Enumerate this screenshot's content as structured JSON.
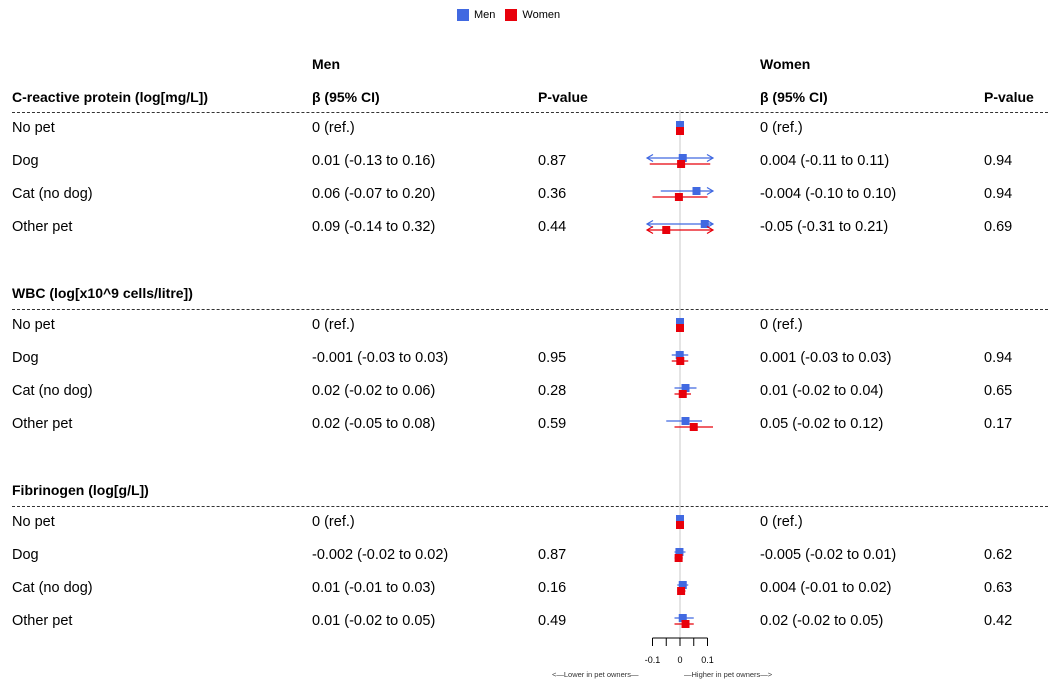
{
  "legend": {
    "men_label": "Men",
    "women_label": "Women",
    "men_color": "#4169E1",
    "women_color": "#E8000B"
  },
  "group_headers": {
    "men": "Men",
    "women": "Women"
  },
  "column_headers": {
    "estimate": "β (95% CI)",
    "pvalue": "P-value"
  },
  "axis": {
    "ticks": [
      -0.1,
      0,
      0.1
    ],
    "tick_labels": [
      "-0.1",
      "0",
      "0.1"
    ],
    "lower_note": "<—Lower in pet owners—",
    "higher_note": "—Higher in pet owners—>"
  },
  "sections": [
    {
      "title": "C-reactive protein (log[mg/L])",
      "rows": [
        {
          "label": "No pet",
          "men_ci": "0 (ref.)",
          "men_p": "",
          "women_ci": "0 (ref.)",
          "women_p": ""
        },
        {
          "label": "Dog",
          "men_ci": "0.01 (-0.13 to 0.16)",
          "men_p": "0.87",
          "women_ci": "0.004 (-0.11 to 0.11)",
          "women_p": "0.94"
        },
        {
          "label": "Cat (no dog)",
          "men_ci": "0.06 (-0.07 to 0.20)",
          "men_p": "0.36",
          "women_ci": "-0.004 (-0.10 to 0.10)",
          "women_p": "0.94"
        },
        {
          "label": "Other pet",
          "men_ci": "0.09 (-0.14 to 0.32)",
          "men_p": "0.44",
          "women_ci": "-0.05 (-0.31 to 0.21)",
          "women_p": "0.69"
        }
      ]
    },
    {
      "title": "WBC (log[x10^9 cells/litre])",
      "rows": [
        {
          "label": "No pet",
          "men_ci": "0 (ref.)",
          "men_p": "",
          "women_ci": "0 (ref.)",
          "women_p": ""
        },
        {
          "label": "Dog",
          "men_ci": "-0.001 (-0.03 to 0.03)",
          "men_p": "0.95",
          "women_ci": "0.001 (-0.03 to 0.03)",
          "women_p": "0.94"
        },
        {
          "label": "Cat (no dog)",
          "men_ci": "0.02 (-0.02 to 0.06)",
          "men_p": "0.28",
          "women_ci": "0.01 (-0.02 to 0.04)",
          "women_p": "0.65"
        },
        {
          "label": "Other pet",
          "men_ci": "0.02 (-0.05 to 0.08)",
          "men_p": "0.59",
          "women_ci": "0.05 (-0.02 to 0.12)",
          "women_p": "0.17"
        }
      ]
    },
    {
      "title": "Fibrinogen (log[g/L])",
      "rows": [
        {
          "label": "No pet",
          "men_ci": "0 (ref.)",
          "men_p": "",
          "women_ci": "0 (ref.)",
          "women_p": ""
        },
        {
          "label": "Dog",
          "men_ci": "-0.002 (-0.02 to 0.02)",
          "men_p": "0.87",
          "women_ci": "-0.005 (-0.02 to 0.01)",
          "women_p": "0.62"
        },
        {
          "label": "Cat (no dog)",
          "men_ci": "0.01 (-0.01 to 0.03)",
          "men_p": "0.16",
          "women_ci": "0.004 (-0.01 to 0.02)",
          "women_p": "0.63"
        },
        {
          "label": "Other pet",
          "men_ci": "0.01 (-0.02 to 0.05)",
          "men_p": "0.49",
          "women_ci": "0.02 (-0.02 to 0.05)",
          "women_p": "0.42"
        }
      ]
    }
  ],
  "chart_data": {
    "type": "forest",
    "title": "",
    "xlim": [
      -0.12,
      0.12
    ],
    "clip_arrows": true,
    "series": [
      {
        "name": "Men",
        "color": "#4169E1",
        "points": [
          {
            "section": 0,
            "row": 0,
            "est": 0,
            "lo": 0,
            "hi": 0
          },
          {
            "section": 0,
            "row": 1,
            "est": 0.01,
            "lo": -0.13,
            "hi": 0.16
          },
          {
            "section": 0,
            "row": 2,
            "est": 0.06,
            "lo": -0.07,
            "hi": 0.2
          },
          {
            "section": 0,
            "row": 3,
            "est": 0.09,
            "lo": -0.14,
            "hi": 0.32
          },
          {
            "section": 1,
            "row": 0,
            "est": 0,
            "lo": 0,
            "hi": 0
          },
          {
            "section": 1,
            "row": 1,
            "est": -0.001,
            "lo": -0.03,
            "hi": 0.03
          },
          {
            "section": 1,
            "row": 2,
            "est": 0.02,
            "lo": -0.02,
            "hi": 0.06
          },
          {
            "section": 1,
            "row": 3,
            "est": 0.02,
            "lo": -0.05,
            "hi": 0.08
          },
          {
            "section": 2,
            "row": 0,
            "est": 0,
            "lo": 0,
            "hi": 0
          },
          {
            "section": 2,
            "row": 1,
            "est": -0.002,
            "lo": -0.02,
            "hi": 0.02
          },
          {
            "section": 2,
            "row": 2,
            "est": 0.01,
            "lo": -0.01,
            "hi": 0.03
          },
          {
            "section": 2,
            "row": 3,
            "est": 0.01,
            "lo": -0.02,
            "hi": 0.05
          }
        ]
      },
      {
        "name": "Women",
        "color": "#E8000B",
        "points": [
          {
            "section": 0,
            "row": 0,
            "est": 0,
            "lo": 0,
            "hi": 0
          },
          {
            "section": 0,
            "row": 1,
            "est": 0.004,
            "lo": -0.11,
            "hi": 0.11
          },
          {
            "section": 0,
            "row": 2,
            "est": -0.004,
            "lo": -0.1,
            "hi": 0.1
          },
          {
            "section": 0,
            "row": 3,
            "est": -0.05,
            "lo": -0.31,
            "hi": 0.21
          },
          {
            "section": 1,
            "row": 0,
            "est": 0,
            "lo": 0,
            "hi": 0
          },
          {
            "section": 1,
            "row": 1,
            "est": 0.001,
            "lo": -0.03,
            "hi": 0.03
          },
          {
            "section": 1,
            "row": 2,
            "est": 0.01,
            "lo": -0.02,
            "hi": 0.04
          },
          {
            "section": 1,
            "row": 3,
            "est": 0.05,
            "lo": -0.02,
            "hi": 0.12
          },
          {
            "section": 2,
            "row": 0,
            "est": 0,
            "lo": 0,
            "hi": 0
          },
          {
            "section": 2,
            "row": 1,
            "est": -0.005,
            "lo": -0.02,
            "hi": 0.01
          },
          {
            "section": 2,
            "row": 2,
            "est": 0.004,
            "lo": -0.01,
            "hi": 0.02
          },
          {
            "section": 2,
            "row": 3,
            "est": 0.02,
            "lo": -0.02,
            "hi": 0.05
          }
        ]
      }
    ]
  }
}
